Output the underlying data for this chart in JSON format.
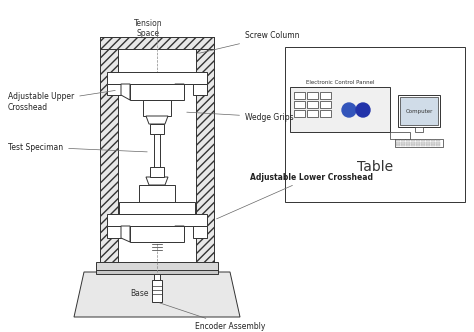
{
  "bg_color": "#ffffff",
  "line_color": "#333333",
  "label_color": "#222222",
  "labels": {
    "tension_space": "Tension\nSpace",
    "screw_column": "Screw Column",
    "adj_upper": "Adjustable Upper\nCrosshead",
    "wedge_grips": "Wedge Grips",
    "test_specimen": "Test Speciman",
    "adj_lower": "Adjustable Lower Crosshead",
    "base": "Base",
    "encoder": "Encoder Assembly",
    "electronic_panel": "Electronic Control Pannel",
    "computer": "Computer",
    "table": "Table"
  }
}
